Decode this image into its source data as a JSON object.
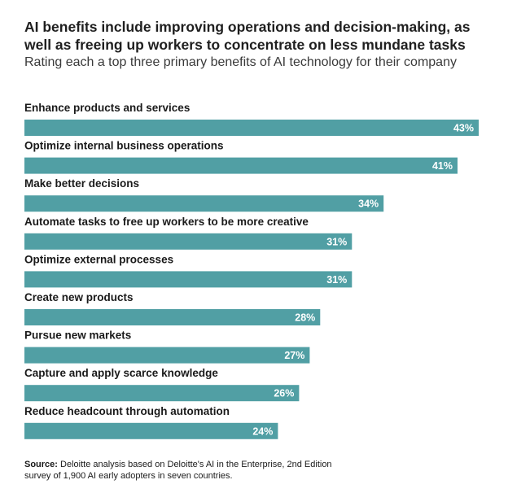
{
  "header": {
    "title": "AI benefits include improving operations and decision-making, as well as freeing up workers to concentrate on less mundane tasks",
    "subtitle": "Rating each a top three primary benefits of AI technology for their company"
  },
  "footer": {
    "source_label": "Source:",
    "source_text": "Deloitte analysis based on Deloitte's AI in the Enterprise, 2nd Edition survey of 1,900 AI early adopters in seven countries."
  },
  "colors": {
    "bar": "#519fa4",
    "value_text": "#ffffff",
    "label_text": "#1a1a1a"
  },
  "chart_data": {
    "type": "bar",
    "orientation": "horizontal",
    "unit": "%",
    "xlim": [
      0,
      43
    ],
    "grid": false,
    "legend": "none",
    "categories": [
      "Enhance products and services",
      "Optimize internal business operations",
      "Make better decisions",
      "Automate tasks to free up workers to be more creative",
      "Optimize external processes",
      "Create new products",
      "Pursue new markets",
      "Capture and apply scarce knowledge",
      "Reduce headcount through automation"
    ],
    "values": [
      43,
      41,
      34,
      31,
      31,
      28,
      27,
      26,
      24
    ],
    "value_labels": [
      "43%",
      "41%",
      "34%",
      "31%",
      "31%",
      "28%",
      "27%",
      "26%",
      "24%"
    ]
  }
}
